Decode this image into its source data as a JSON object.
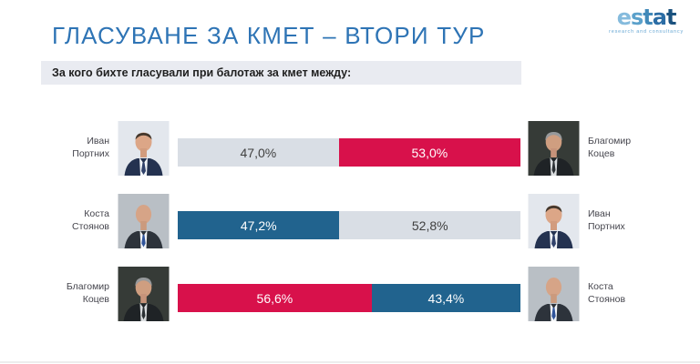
{
  "title": "ГЛАСУВАНЕ ЗА КМЕТ – ВТОРИ ТУР",
  "logo": {
    "letters": [
      "e",
      "s",
      "t",
      "a",
      "t"
    ],
    "tagline": "research and consultancy"
  },
  "question": "За кого бихте гласували при балотаж за кмет между:",
  "colors": {
    "title": "#2E74B5",
    "bar_red": "#D8114B",
    "bar_blue": "#21638E",
    "bar_neutral": "#D9DEE5",
    "question_bg": "#E9EBF1"
  },
  "chart_data": {
    "type": "bar",
    "orientation": "horizontal-stacked",
    "title": "ГЛАСУВАНЕ ЗА КМЕТ – ВТОРИ ТУР",
    "subtitle": "За кого бихте гласували при балотаж за кмет между:",
    "unit": "%",
    "xlim": [
      0,
      100
    ],
    "rows": [
      {
        "left": {
          "name": "Иван Портних",
          "line1": "Иван",
          "line2": "Портних",
          "value": 47.0,
          "label": "47,0%",
          "color": "#D9DEE5"
        },
        "right": {
          "name": "Благомир Коцев",
          "line1": "Благомир",
          "line2": "Коцев",
          "value": 53.0,
          "label": "53,0%",
          "color": "#D8114B"
        }
      },
      {
        "left": {
          "name": "Коста Стоянов",
          "line1": "Коста",
          "line2": "Стоянов",
          "value": 47.2,
          "label": "47,2%",
          "color": "#21638E"
        },
        "right": {
          "name": "Иван Портних",
          "line1": "Иван",
          "line2": "Портних",
          "value": 52.8,
          "label": "52,8%",
          "color": "#D9DEE5"
        }
      },
      {
        "left": {
          "name": "Благомир Коцев",
          "line1": "Благомир",
          "line2": "Коцев",
          "value": 56.6,
          "label": "56,6%",
          "color": "#D8114B"
        },
        "right": {
          "name": "Коста Стоянов",
          "line1": "Коста",
          "line2": "Стоянов",
          "value": 43.4,
          "label": "43,4%",
          "color": "#21638E"
        }
      }
    ]
  }
}
